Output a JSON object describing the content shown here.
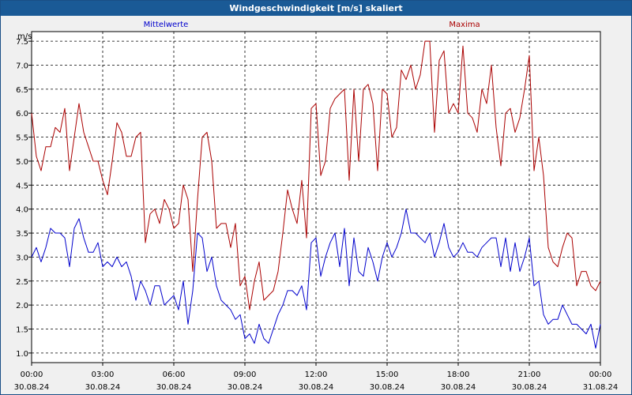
{
  "window_title": "Windgeschwindigkeit [m/s] skaliert",
  "chart_data": {
    "type": "line",
    "title": "Windgeschwindigkeit [m/s] skaliert",
    "ylabel": "m/s",
    "xlabel": "",
    "ylim": [
      0.8,
      7.7
    ],
    "y_ticks": [
      "1.0",
      "1.5",
      "2.0",
      "2.5",
      "3.0",
      "3.5",
      "4.0",
      "4.5",
      "5.0",
      "5.5",
      "6.0",
      "6.5",
      "7.0",
      "7.5"
    ],
    "y_tick_values": [
      1.0,
      1.5,
      2.0,
      2.5,
      3.0,
      3.5,
      4.0,
      4.5,
      5.0,
      5.5,
      6.0,
      6.5,
      7.0,
      7.5
    ],
    "xlim_hours": [
      0,
      24
    ],
    "x_ticks": [
      {
        "time": "00:00",
        "date": "30.08.24",
        "hour": 0
      },
      {
        "time": "03:00",
        "date": "30.08.24",
        "hour": 3
      },
      {
        "time": "06:00",
        "date": "30.08.24",
        "hour": 6
      },
      {
        "time": "09:00",
        "date": "30.08.24",
        "hour": 9
      },
      {
        "time": "12:00",
        "date": "30.08.24",
        "hour": 12
      },
      {
        "time": "15:00",
        "date": "30.08.24",
        "hour": 15
      },
      {
        "time": "18:00",
        "date": "30.08.24",
        "hour": 18
      },
      {
        "time": "21:00",
        "date": "30.08.24",
        "hour": 21
      },
      {
        "time": "00:00",
        "date": "31.08.24",
        "hour": 24
      }
    ],
    "grid": true,
    "legend_position": "top",
    "series": [
      {
        "name": "Mittelwerte",
        "color": "#0000cc",
        "x_hours": [
          0,
          0.2,
          0.4,
          0.6,
          0.8,
          1.0,
          1.2,
          1.4,
          1.6,
          1.8,
          2.0,
          2.2,
          2.4,
          2.6,
          2.8,
          3.0,
          3.2,
          3.4,
          3.6,
          3.8,
          4.0,
          4.2,
          4.4,
          4.6,
          4.8,
          5.0,
          5.2,
          5.4,
          5.6,
          5.8,
          6.0,
          6.2,
          6.4,
          6.6,
          6.8,
          7.0,
          7.2,
          7.4,
          7.6,
          7.8,
          8.0,
          8.2,
          8.4,
          8.6,
          8.8,
          9.0,
          9.2,
          9.4,
          9.6,
          9.8,
          10.0,
          10.2,
          10.4,
          10.6,
          10.8,
          11.0,
          11.2,
          11.4,
          11.6,
          11.8,
          12.0,
          12.2,
          12.4,
          12.6,
          12.8,
          13.0,
          13.2,
          13.4,
          13.6,
          13.8,
          14.0,
          14.2,
          14.4,
          14.6,
          14.8,
          15.0,
          15.2,
          15.4,
          15.6,
          15.8,
          16.0,
          16.2,
          16.4,
          16.6,
          16.8,
          17.0,
          17.2,
          17.4,
          17.6,
          17.8,
          18.0,
          18.2,
          18.4,
          18.6,
          18.8,
          19.0,
          19.2,
          19.4,
          19.6,
          19.8,
          20.0,
          20.2,
          20.4,
          20.6,
          20.8,
          21.0,
          21.2,
          21.4,
          21.6,
          21.8,
          22.0,
          22.2,
          22.4,
          22.6,
          22.8,
          23.0,
          23.2,
          23.4,
          23.6,
          23.8,
          24.0
        ],
        "values": [
          3.0,
          3.2,
          2.9,
          3.2,
          3.6,
          3.5,
          3.5,
          3.4,
          2.8,
          3.6,
          3.8,
          3.4,
          3.1,
          3.1,
          3.3,
          2.8,
          2.9,
          2.8,
          3.0,
          2.8,
          2.9,
          2.6,
          2.1,
          2.5,
          2.3,
          2.0,
          2.4,
          2.4,
          2.0,
          2.1,
          2.2,
          1.9,
          2.5,
          1.6,
          2.3,
          3.5,
          3.4,
          2.7,
          3.0,
          2.4,
          2.1,
          2.0,
          1.9,
          1.7,
          1.8,
          1.3,
          1.4,
          1.2,
          1.6,
          1.3,
          1.2,
          1.5,
          1.8,
          2.0,
          2.3,
          2.3,
          2.2,
          2.4,
          1.9,
          3.3,
          3.4,
          2.6,
          3.0,
          3.3,
          3.5,
          2.8,
          3.6,
          2.4,
          3.4,
          2.7,
          2.6,
          3.2,
          2.9,
          2.5,
          3.0,
          3.3,
          3.0,
          3.2,
          3.5,
          4.0,
          3.5,
          3.5,
          3.4,
          3.3,
          3.5,
          3.0,
          3.3,
          3.7,
          3.2,
          3.0,
          3.1,
          3.3,
          3.1,
          3.1,
          3.0,
          3.2,
          3.3,
          3.4,
          3.4,
          2.8,
          3.4,
          2.7,
          3.3,
          2.7,
          3.0,
          3.4,
          2.4,
          2.5,
          1.8,
          1.6,
          1.7,
          1.7,
          2.0,
          1.8,
          1.6,
          1.6,
          1.5,
          1.4,
          1.6,
          1.1,
          1.6
        ]
      },
      {
        "name": "Maxima",
        "color": "#aa0000",
        "x_hours": [
          0,
          0.2,
          0.4,
          0.6,
          0.8,
          1.0,
          1.2,
          1.4,
          1.6,
          1.8,
          2.0,
          2.2,
          2.4,
          2.6,
          2.8,
          3.0,
          3.2,
          3.4,
          3.6,
          3.8,
          4.0,
          4.2,
          4.4,
          4.6,
          4.8,
          5.0,
          5.2,
          5.4,
          5.6,
          5.8,
          6.0,
          6.2,
          6.4,
          6.6,
          6.8,
          7.0,
          7.2,
          7.4,
          7.6,
          7.8,
          8.0,
          8.2,
          8.4,
          8.6,
          8.8,
          9.0,
          9.2,
          9.4,
          9.6,
          9.8,
          10.0,
          10.2,
          10.4,
          10.6,
          10.8,
          11.0,
          11.2,
          11.4,
          11.6,
          11.8,
          12.0,
          12.2,
          12.4,
          12.6,
          12.8,
          13.0,
          13.2,
          13.4,
          13.6,
          13.8,
          14.0,
          14.2,
          14.4,
          14.6,
          14.8,
          15.0,
          15.2,
          15.4,
          15.6,
          15.8,
          16.0,
          16.2,
          16.4,
          16.6,
          16.8,
          17.0,
          17.2,
          17.4,
          17.6,
          17.8,
          18.0,
          18.2,
          18.4,
          18.6,
          18.8,
          19.0,
          19.2,
          19.4,
          19.6,
          19.8,
          20.0,
          20.2,
          20.4,
          20.6,
          20.8,
          21.0,
          21.2,
          21.4,
          21.6,
          21.8,
          22.0,
          22.2,
          22.4,
          22.6,
          22.8,
          23.0,
          23.2,
          23.4,
          23.6,
          23.8,
          24.0
        ],
        "values": [
          6.0,
          5.1,
          4.8,
          5.3,
          5.3,
          5.7,
          5.6,
          6.1,
          4.8,
          5.5,
          6.2,
          5.6,
          5.3,
          5.0,
          5.0,
          4.6,
          4.3,
          5.0,
          5.8,
          5.6,
          5.1,
          5.1,
          5.5,
          5.6,
          3.3,
          3.9,
          4.0,
          3.7,
          4.2,
          4.0,
          3.6,
          3.7,
          4.5,
          4.2,
          2.7,
          4.2,
          5.5,
          5.6,
          5.0,
          3.6,
          3.7,
          3.7,
          3.2,
          3.7,
          2.4,
          2.6,
          1.9,
          2.5,
          2.9,
          2.1,
          2.2,
          2.3,
          2.7,
          3.5,
          4.4,
          4.0,
          3.7,
          4.6,
          3.4,
          6.1,
          6.2,
          4.7,
          5.0,
          6.1,
          6.3,
          6.4,
          6.5,
          4.6,
          6.5,
          5.0,
          6.5,
          6.6,
          6.2,
          4.8,
          6.5,
          6.4,
          5.5,
          5.7,
          6.9,
          6.7,
          7.0,
          6.5,
          6.8,
          7.5,
          7.5,
          5.6,
          7.1,
          7.3,
          6.0,
          6.2,
          6.0,
          7.4,
          6.0,
          5.9,
          5.6,
          6.5,
          6.2,
          7.0,
          5.7,
          4.9,
          6.0,
          6.1,
          5.6,
          5.9,
          6.5,
          7.2,
          4.8,
          5.5,
          4.7,
          3.2,
          2.9,
          2.8,
          3.2,
          3.5,
          3.4,
          2.4,
          2.7,
          2.7,
          2.4,
          2.3,
          2.5
        ]
      }
    ]
  }
}
